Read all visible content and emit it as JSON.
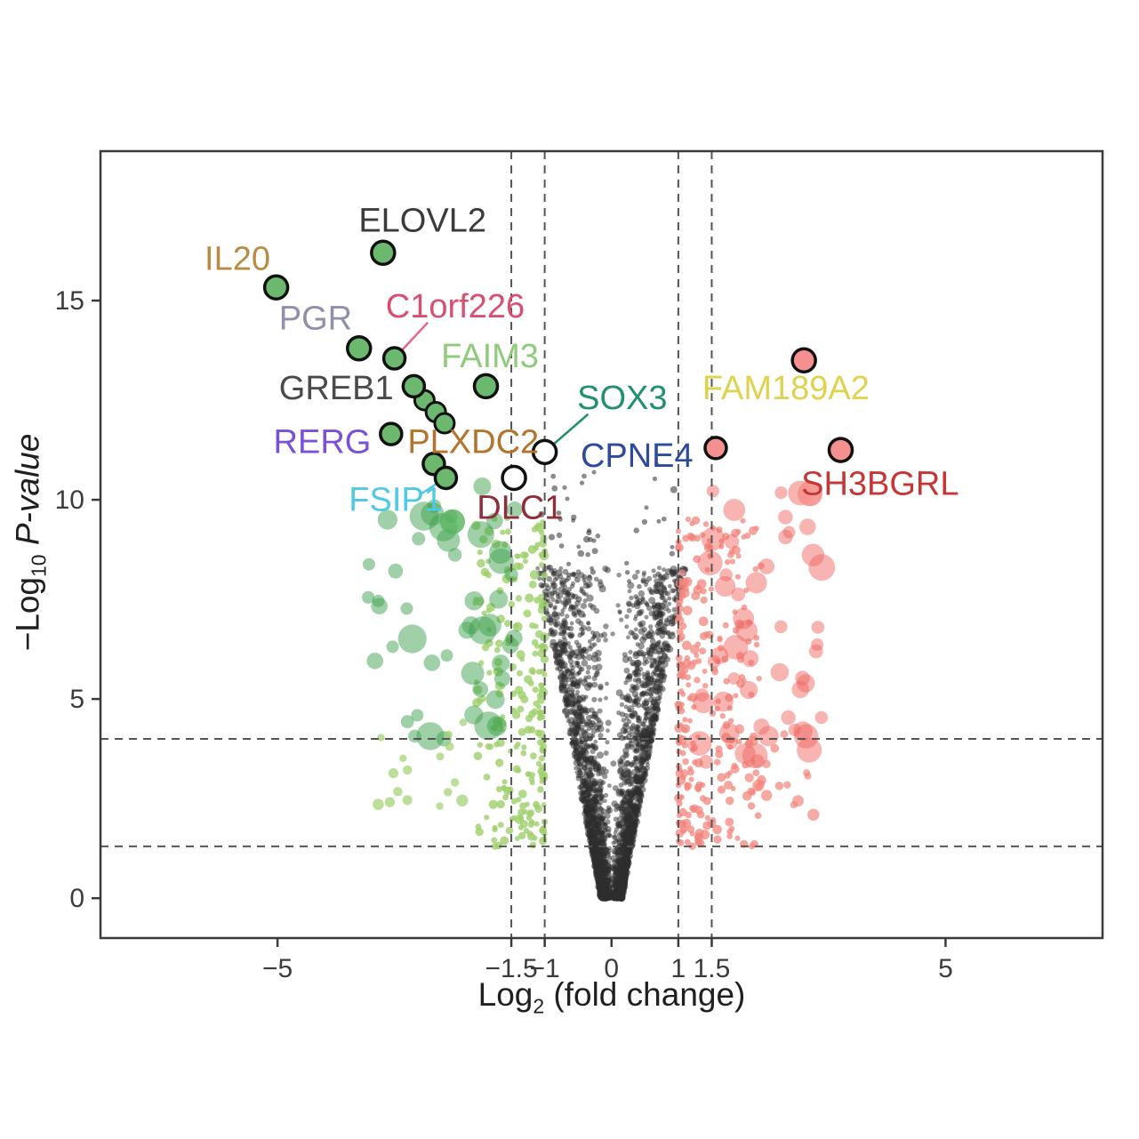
{
  "chart_data": {
    "type": "scatter",
    "subtype": "volcano-plot",
    "title": "",
    "xlabel": "Log₂ (fold change)",
    "ylabel": "−Log₁₀ P-value",
    "axis_labels": {
      "x_base": "Log",
      "x_sub": "2",
      "x_rest": " (fold change)",
      "y_base": "−Log",
      "y_sub": "10",
      "y_italic": "P-value"
    },
    "xlim": [
      -7.65,
      7.35
    ],
    "ylim": [
      -1.0,
      18.75
    ],
    "x_ticks": [
      -5,
      -1.5,
      -1,
      0,
      1,
      1.5,
      5
    ],
    "x_tick_labels": [
      "−5",
      "−1.5",
      "−1",
      "0",
      "1",
      "1.5",
      "5"
    ],
    "y_ticks": [
      0,
      5,
      10,
      15
    ],
    "y_tick_labels": [
      "0",
      "5",
      "10",
      "15"
    ],
    "threshold_vlines": [
      -1.5,
      -1,
      1,
      1.5
    ],
    "threshold_hlines": [
      4.0,
      1.3
    ],
    "legend": "none",
    "grid": "off",
    "colors": {
      "down_strong": "#3fa14f",
      "down_weak": "#9fd06c",
      "up_small": "#f2867d",
      "up_large": "#ef6a63",
      "nonsig": "#2e2e2e",
      "highlight_down_fill": "#6db86f",
      "highlight_up_fill": "#f59090",
      "highlight_open_fill": "#ffffff",
      "highlight_stroke": "#111111",
      "dashed_line": "#555555",
      "axis": "#3a3a3a",
      "tick_text": "#3c3c3c"
    },
    "labeled_points": [
      {
        "gene": "ELOVL2",
        "x": -3.42,
        "y": 16.2,
        "style": "down",
        "r": 13,
        "label": {
          "x": -2.83,
          "y": 16.95,
          "color": "#3b3b3b"
        }
      },
      {
        "gene": "IL20",
        "x": -5.02,
        "y": 15.33,
        "style": "down",
        "r": 13,
        "label": {
          "x": -5.6,
          "y": 16.0,
          "color": "#b98b45"
        }
      },
      {
        "gene": "PGR",
        "x": -3.78,
        "y": 13.8,
        "style": "down",
        "r": 13,
        "label": {
          "x": -4.43,
          "y": 14.5,
          "color": "#9090aa"
        }
      },
      {
        "gene": "C1orf226",
        "x": -3.25,
        "y": 13.55,
        "style": "down",
        "r": 12,
        "label": {
          "x": -2.34,
          "y": 14.8,
          "color": "#d94f72"
        },
        "leader": {
          "x": -2.75,
          "y": 14.45,
          "color": "#e06a86"
        }
      },
      {
        "gene": "FAIM3",
        "x": -1.88,
        "y": 12.85,
        "style": "down",
        "r": 13,
        "label": {
          "x": -1.82,
          "y": 13.55,
          "color": "#8fca7d"
        }
      },
      {
        "gene": "GREB1",
        "x": -2.96,
        "y": 12.85,
        "style": "down",
        "r": 12,
        "label": {
          "x": -4.12,
          "y": 12.75,
          "color": "#4a4a4a"
        }
      },
      {
        "gene": "RERG",
        "x": -3.3,
        "y": 11.65,
        "style": "down",
        "r": 12,
        "label": {
          "x": -4.33,
          "y": 11.4,
          "color": "#7b50d8"
        }
      },
      {
        "gene": "PLXDC2",
        "x": -2.66,
        "y": 10.9,
        "style": "down",
        "r": 12,
        "label": {
          "x": -2.07,
          "y": 11.4,
          "color": "#b5742e"
        }
      },
      {
        "gene": "FSIP1",
        "x": -2.48,
        "y": 10.55,
        "style": "down",
        "r": 12,
        "label": {
          "x": -3.23,
          "y": 9.95,
          "color": "#4fc9e6"
        },
        "leader": {
          "x": -2.85,
          "y": 10.15,
          "color": "#4fc9e6"
        }
      },
      {
        "gene": "DLC1",
        "x": -1.46,
        "y": 10.55,
        "style": "open",
        "r": 13,
        "label": {
          "x": -1.37,
          "y": 9.75,
          "color": "#8e2f3b"
        }
      },
      {
        "gene": "SOX3",
        "x": -1.0,
        "y": 11.2,
        "style": "open",
        "r": 13,
        "label": {
          "x": 0.16,
          "y": 12.5,
          "color": "#219071"
        },
        "leader": {
          "x": -0.35,
          "y": 12.15,
          "color": "#219071"
        }
      },
      {
        "gene": "CPNE4",
        "x": 1.56,
        "y": 11.3,
        "style": "up",
        "r": 12,
        "label": {
          "x": 0.38,
          "y": 11.05,
          "color": "#2c4a9e"
        }
      },
      {
        "gene": "FAM189A2",
        "x": 2.88,
        "y": 13.5,
        "style": "up",
        "r": 13,
        "label": {
          "x": 2.61,
          "y": 12.75,
          "color": "#dfd24f"
        }
      },
      {
        "gene": "SH3BGRL",
        "x": 3.43,
        "y": 11.25,
        "style": "up",
        "r": 13,
        "label": {
          "x": 4.02,
          "y": 10.35,
          "color": "#c63636"
        }
      }
    ],
    "extra_outlined_points": [
      {
        "x": -2.8,
        "y": 12.5,
        "r": 11
      },
      {
        "x": -2.63,
        "y": 12.2,
        "r": 11
      },
      {
        "x": -2.5,
        "y": 11.92,
        "r": 11
      }
    ],
    "extra_points": [
      {
        "x": 2.97,
        "y": 10.15,
        "r": 14,
        "color": "#f5918b",
        "alpha": 0.9
      },
      {
        "x": -2.38,
        "y": 9.45,
        "r": 14,
        "color": "#57b45f",
        "alpha": 0.8
      }
    ],
    "background_groups": [
      {
        "name": "nonsig-funnel",
        "seed": 11,
        "n": 3200,
        "color": "#2e2e2e",
        "alpha": 0.5,
        "gen": "funnel",
        "y_max": 8.3,
        "y_pow": 2.0,
        "x_base": 0.16,
        "x_slope": 0.115,
        "x_pow": 0.45,
        "x_cap": 1.12,
        "r_min": 2.4,
        "r_max": 4.2
      },
      {
        "name": "nonsig-upper",
        "seed": 12,
        "n": 75,
        "color": "#2e2e2e",
        "alpha": 0.55,
        "gen": "band",
        "x_min": 0.2,
        "x_max": 1.1,
        "mirror": true,
        "y_min": 7.3,
        "y_max": 10.9,
        "y_pow": 1.8,
        "r_min": 2.4,
        "r_max": 4.0
      },
      {
        "name": "down-small",
        "seed": 13,
        "n": 240,
        "color": "#9fd06c",
        "alpha": 0.8,
        "gen": "side",
        "side": -1,
        "x_near": 1.0,
        "x_spread": 1.05,
        "x_pow": 1.7,
        "y_min": 1.3,
        "y_max": 9.6,
        "y_pow": 1.15,
        "r_min": 3.0,
        "r_max": 5.5
      },
      {
        "name": "down-large",
        "seed": 14,
        "n": 48,
        "color": "#3fa14f",
        "alpha": 0.5,
        "gen": "side",
        "side": -1,
        "x_near": 1.45,
        "x_spread": 2.2,
        "x_pow": 1.4,
        "y_min": 4.0,
        "y_max": 10.4,
        "y_pow": 1.0,
        "r_min": 7.0,
        "r_max": 17.0
      },
      {
        "name": "down-scatter",
        "seed": 17,
        "n": 16,
        "color": "#9fd06c",
        "alpha": 0.7,
        "gen": "band",
        "x_min": -3.6,
        "x_max": -1.9,
        "mirror": false,
        "y_min": 2.2,
        "y_max": 4.6,
        "y_pow": 1.0,
        "r_min": 4.0,
        "r_max": 7.0
      },
      {
        "name": "up-small",
        "seed": 15,
        "n": 260,
        "color": "#f2867d",
        "alpha": 0.75,
        "gen": "side",
        "side": 1,
        "x_near": 1.0,
        "x_spread": 1.25,
        "x_pow": 1.8,
        "y_min": 1.3,
        "y_max": 9.6,
        "y_pow": 1.15,
        "r_min": 3.0,
        "r_max": 5.5
      },
      {
        "name": "up-large",
        "seed": 16,
        "n": 52,
        "color": "#ef6a63",
        "alpha": 0.5,
        "gen": "side",
        "side": 1,
        "x_near": 1.25,
        "x_spread": 2.0,
        "x_pow": 1.3,
        "y_min": 3.0,
        "y_max": 10.4,
        "y_pow": 1.0,
        "r_min": 7.0,
        "r_max": 15.0
      },
      {
        "name": "up-scatter",
        "seed": 18,
        "n": 18,
        "color": "#f2867d",
        "alpha": 0.7,
        "gen": "band",
        "x_min": 1.8,
        "x_max": 3.1,
        "mirror": false,
        "y_min": 1.8,
        "y_max": 4.4,
        "y_pow": 1.0,
        "r_min": 4.0,
        "r_max": 7.0
      }
    ]
  }
}
